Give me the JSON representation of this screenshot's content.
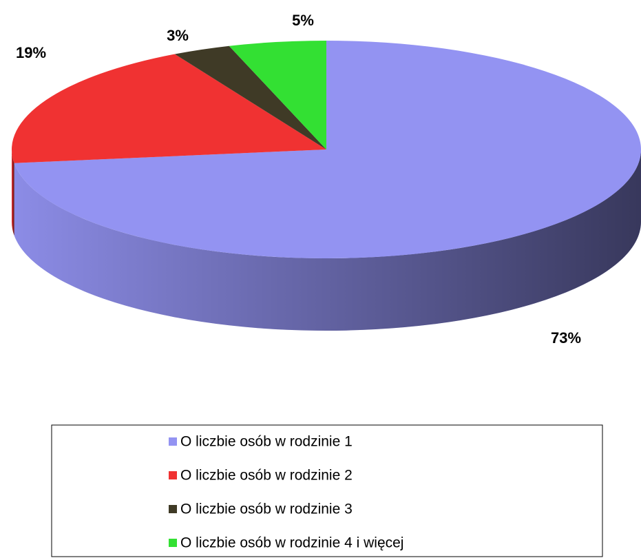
{
  "chart_data": {
    "type": "pie",
    "categories": [
      "O liczbie osób w rodzinie 1",
      "O liczbie osób w rodzinie 2",
      "O liczbie osób w rodzinie 3",
      "O liczbie osób w rodzinie 4 i więcej"
    ],
    "values": [
      73,
      19,
      3,
      5
    ],
    "value_labels": [
      "73%",
      "19%",
      "3%",
      "5%"
    ],
    "colors": [
      "#9393f2",
      "#f03232",
      "#3f3a26",
      "#33e033"
    ]
  }
}
